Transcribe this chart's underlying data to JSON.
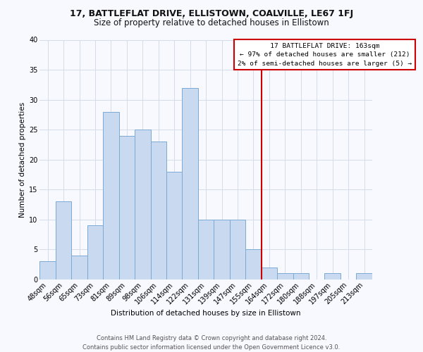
{
  "title": "17, BATTLEFLAT DRIVE, ELLISTOWN, COALVILLE, LE67 1FJ",
  "subtitle": "Size of property relative to detached houses in Ellistown",
  "xlabel": "Distribution of detached houses by size in Ellistown",
  "ylabel": "Number of detached properties",
  "categories": [
    "48sqm",
    "56sqm",
    "65sqm",
    "73sqm",
    "81sqm",
    "89sqm",
    "98sqm",
    "106sqm",
    "114sqm",
    "122sqm",
    "131sqm",
    "139sqm",
    "147sqm",
    "155sqm",
    "164sqm",
    "172sqm",
    "180sqm",
    "188sqm",
    "197sqm",
    "205sqm",
    "213sqm"
  ],
  "values": [
    3,
    13,
    4,
    9,
    28,
    24,
    25,
    23,
    18,
    32,
    10,
    10,
    10,
    5,
    2,
    1,
    1,
    0,
    1,
    0,
    1
  ],
  "bar_color": "#c9d9f0",
  "bar_edgecolor": "#7aaad4",
  "marker_line_color": "#cc0000",
  "annotation_line1": "   17 BATTLEFLAT DRIVE: 163sqm   ",
  "annotation_line2": "← 97% of detached houses are smaller (212)",
  "annotation_line3": "2% of semi-detached houses are larger (5) →",
  "annotation_box_color": "#cc0000",
  "footer": "Contains HM Land Registry data © Crown copyright and database right 2024.\nContains public sector information licensed under the Open Government Licence v3.0.",
  "ylim": [
    0,
    40
  ],
  "yticks": [
    0,
    5,
    10,
    15,
    20,
    25,
    30,
    35,
    40
  ],
  "title_fontsize": 9,
  "subtitle_fontsize": 8.5,
  "axis_label_fontsize": 7.5,
  "tick_fontsize": 7,
  "footer_fontsize": 6,
  "bg_color": "#f8f8ff",
  "grid_color": "#d4dcea",
  "marker_bin_index": 14
}
